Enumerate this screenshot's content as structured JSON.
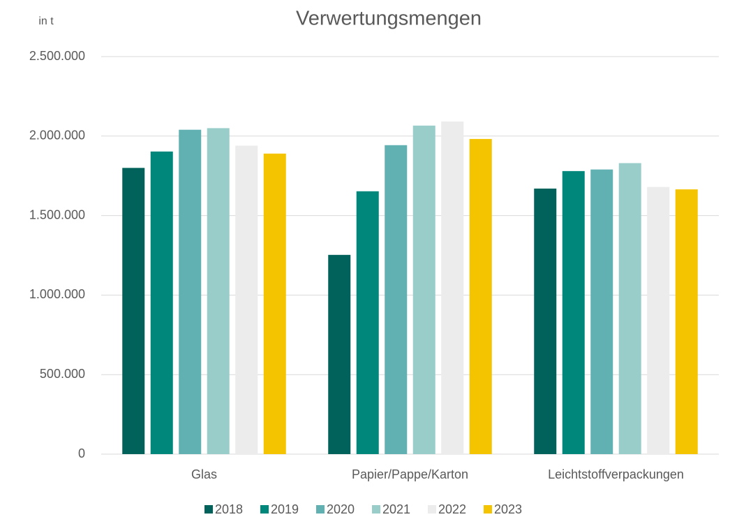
{
  "chart_data": {
    "type": "bar",
    "title": "Verwertungsmengen",
    "y_label": "in t",
    "categories": [
      "Glas",
      "Papier/Pappe/Karton",
      "Leichtstoffverpackungen"
    ],
    "series": [
      {
        "name": "2018",
        "color": "#00625a",
        "values": [
          1800000,
          1253000,
          1670000
        ]
      },
      {
        "name": "2019",
        "color": "#00877b",
        "values": [
          1903000,
          1653000,
          1780000
        ]
      },
      {
        "name": "2020",
        "color": "#62b1b2",
        "values": [
          2040000,
          1943000,
          1790000
        ]
      },
      {
        "name": "2021",
        "color": "#98cdc9",
        "values": [
          2050000,
          2066000,
          1830000
        ]
      },
      {
        "name": "2022",
        "color": "#ececec",
        "values": [
          1940000,
          2092000,
          1680000
        ]
      },
      {
        "name": "2023",
        "color": "#f5c400",
        "values": [
          1890000,
          1982000,
          1665000
        ]
      }
    ],
    "ylim": [
      0,
      2500000
    ],
    "yticks": [
      0,
      {
        "value": 500000,
        "label": "500.000"
      },
      {
        "value": 1000000,
        "label": "1.000.000"
      },
      {
        "value": 1500000,
        "label": "1.500.000"
      },
      {
        "value": 2000000,
        "label": "2.000.000"
      },
      {
        "value": 2500000,
        "label": "2.500.000"
      }
    ],
    "grid": true,
    "legend": "bottom"
  }
}
